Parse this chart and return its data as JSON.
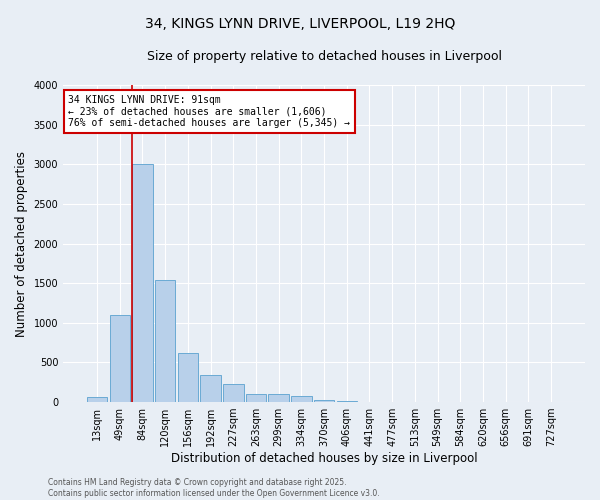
{
  "title_line1": "34, KINGS LYNN DRIVE, LIVERPOOL, L19 2HQ",
  "title_line2": "Size of property relative to detached houses in Liverpool",
  "xlabel": "Distribution of detached houses by size in Liverpool",
  "ylabel": "Number of detached properties",
  "categories": [
    "13sqm",
    "49sqm",
    "84sqm",
    "120sqm",
    "156sqm",
    "192sqm",
    "227sqm",
    "263sqm",
    "299sqm",
    "334sqm",
    "370sqm",
    "406sqm",
    "441sqm",
    "477sqm",
    "513sqm",
    "549sqm",
    "584sqm",
    "620sqm",
    "656sqm",
    "691sqm",
    "727sqm"
  ],
  "values": [
    70,
    1100,
    3000,
    1540,
    620,
    340,
    230,
    105,
    100,
    80,
    30,
    10,
    5,
    3,
    2,
    0,
    0,
    0,
    0,
    0,
    0
  ],
  "bar_color": "#b8d0ea",
  "bar_edge_color": "#6aaad4",
  "annotation_text": "34 KINGS LYNN DRIVE: 91sqm\n← 23% of detached houses are smaller (1,606)\n76% of semi-detached houses are larger (5,345) →",
  "annotation_box_color": "#ffffff",
  "annotation_box_edge_color": "#cc0000",
  "vline_color": "#cc0000",
  "ylim": [
    0,
    4000
  ],
  "yticks": [
    0,
    500,
    1000,
    1500,
    2000,
    2500,
    3000,
    3500,
    4000
  ],
  "footer_text": "Contains HM Land Registry data © Crown copyright and database right 2025.\nContains public sector information licensed under the Open Government Licence v3.0.",
  "bg_color": "#e8eef5",
  "plot_bg_color": "#e8eef5",
  "grid_color": "#ffffff",
  "title_fontsize": 10,
  "subtitle_fontsize": 9,
  "tick_fontsize": 7,
  "label_fontsize": 8.5,
  "annotation_fontsize": 7,
  "footer_fontsize": 5.5
}
